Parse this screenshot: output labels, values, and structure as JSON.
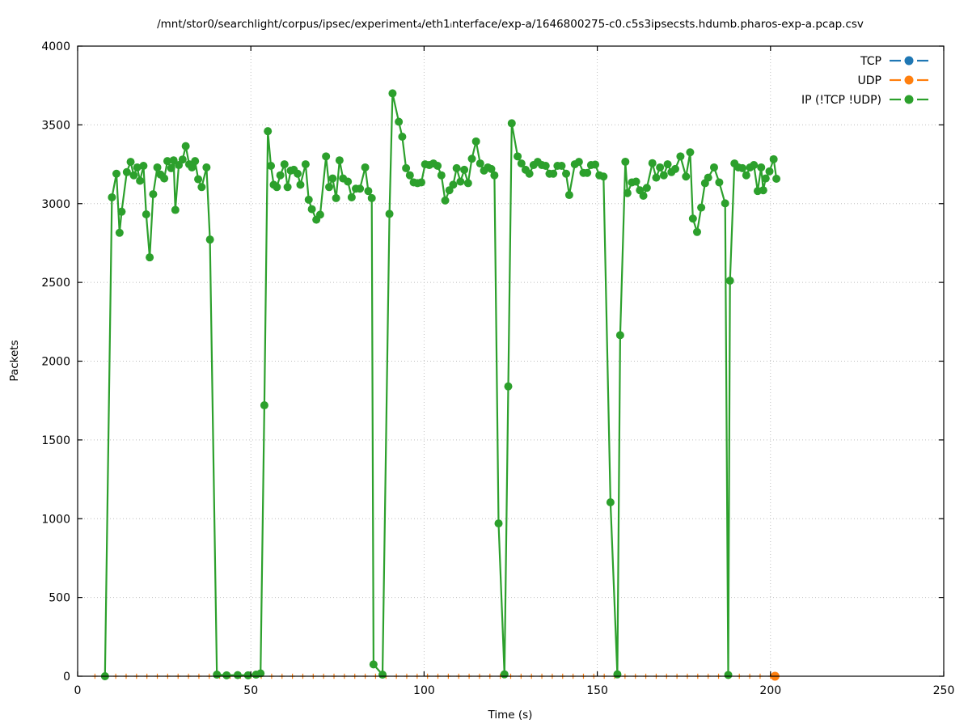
{
  "title": "/mnt/stor0/searchlight/corpus/ipsec/experiment₄/eth1ᵢnterface/exp-a/1646800275-c0.c5s3ipsecsts.hdumb.pharos-exp-a.pcap.csv",
  "axes": {
    "x_label": "Time (s)",
    "y_label": "Packets",
    "x_ticks": [
      0,
      50,
      100,
      150,
      200,
      250
    ],
    "y_ticks": [
      0,
      500,
      1000,
      1500,
      2000,
      2500,
      3000,
      3500,
      4000
    ]
  },
  "legend": {
    "position": "upper right",
    "entries": [
      {
        "label": "TCP",
        "color": "#1f77b4"
      },
      {
        "label": "UDP",
        "color": "#ff7f0e"
      },
      {
        "label": "IP (!TCP  !UDP)",
        "color": "#2ca02c"
      }
    ]
  },
  "chart_data": {
    "type": "line",
    "title": "/mnt/stor0/searchlight/corpus/ipsec/experiment₄/eth1ᵢnterface/exp-a/1646800275-c0.c5s3ipsecsts.hdumb.pharos-exp-a.pcap.csv",
    "xlabel": "Time (s)",
    "ylabel": "Packets",
    "xlim": [
      0,
      250
    ],
    "ylim": [
      0,
      4000
    ],
    "grid": true,
    "grid_style": "dotted",
    "legend_position": "upper right",
    "series": [
      {
        "name": "TCP",
        "color": "#1f77b4",
        "marker": "circle",
        "points": []
      },
      {
        "name": "UDP",
        "color": "#ff7f0e",
        "marker": "plus",
        "final_marker": "circle",
        "points": [
          [
            5,
            0
          ],
          [
            8,
            0
          ],
          [
            11,
            0
          ],
          [
            14,
            0
          ],
          [
            17,
            0
          ],
          [
            20,
            0
          ],
          [
            23,
            0
          ],
          [
            26,
            0
          ],
          [
            29,
            0
          ],
          [
            32,
            0
          ],
          [
            35,
            0
          ],
          [
            38,
            0
          ],
          [
            41,
            0
          ],
          [
            44,
            0
          ],
          [
            47,
            0
          ],
          [
            50,
            0
          ],
          [
            53,
            0
          ],
          [
            56,
            0
          ],
          [
            59,
            0
          ],
          [
            62,
            0
          ],
          [
            65,
            0
          ],
          [
            68,
            0
          ],
          [
            71,
            0
          ],
          [
            74,
            0
          ],
          [
            77,
            0
          ],
          [
            80,
            0
          ],
          [
            83,
            0
          ],
          [
            86,
            0
          ],
          [
            89,
            0
          ],
          [
            92,
            0
          ],
          [
            95,
            0
          ],
          [
            98,
            0
          ],
          [
            101,
            0
          ],
          [
            104,
            0
          ],
          [
            107,
            0
          ],
          [
            110,
            0
          ],
          [
            113,
            0
          ],
          [
            116,
            0
          ],
          [
            119,
            0
          ],
          [
            122,
            0
          ],
          [
            125,
            0
          ],
          [
            128,
            0
          ],
          [
            131,
            0
          ],
          [
            134,
            0
          ],
          [
            137,
            0
          ],
          [
            140,
            0
          ],
          [
            143,
            0
          ],
          [
            146,
            0
          ],
          [
            149,
            0
          ],
          [
            152,
            0
          ],
          [
            155,
            0
          ],
          [
            158,
            0
          ],
          [
            161,
            0
          ],
          [
            164,
            0
          ],
          [
            167,
            0
          ],
          [
            170,
            0
          ],
          [
            173,
            0
          ],
          [
            176,
            0
          ],
          [
            179,
            0
          ],
          [
            182,
            0
          ],
          [
            185,
            0
          ],
          [
            188,
            0
          ],
          [
            191,
            0
          ],
          [
            194,
            0
          ],
          [
            197,
            0
          ],
          [
            200,
            0
          ],
          [
            201.3,
            0
          ]
        ]
      },
      {
        "name": "IP (!TCP  !UDP)",
        "color": "#2ca02c",
        "marker": "circle",
        "points": [
          [
            7.9,
            0
          ],
          [
            9.9,
            3040
          ],
          [
            11.2,
            3190
          ],
          [
            12.1,
            2815
          ],
          [
            12.7,
            2949
          ],
          [
            14.2,
            3200
          ],
          [
            15.3,
            3265
          ],
          [
            16.2,
            3180
          ],
          [
            17.2,
            3230
          ],
          [
            18.0,
            3145
          ],
          [
            19.0,
            3240
          ],
          [
            19.8,
            2932
          ],
          [
            20.8,
            2659
          ],
          [
            21.8,
            3060
          ],
          [
            23.0,
            3230
          ],
          [
            23.9,
            3185
          ],
          [
            25.0,
            3160
          ],
          [
            25.9,
            3270
          ],
          [
            27.0,
            3225
          ],
          [
            27.7,
            3275
          ],
          [
            28.2,
            2960
          ],
          [
            29.2,
            3245
          ],
          [
            30.3,
            3280
          ],
          [
            31.2,
            3365
          ],
          [
            32.2,
            3250
          ],
          [
            33.0,
            3230
          ],
          [
            33.9,
            3270
          ],
          [
            34.8,
            3155
          ],
          [
            35.8,
            3105
          ],
          [
            37.2,
            3230
          ],
          [
            38.2,
            2772
          ],
          [
            40.2,
            10
          ],
          [
            43.0,
            6
          ],
          [
            46.2,
            7
          ],
          [
            49.2,
            6
          ],
          [
            51.5,
            10
          ],
          [
            52.8,
            18
          ],
          [
            53.9,
            1720
          ],
          [
            54.9,
            3460
          ],
          [
            55.8,
            3240
          ],
          [
            56.6,
            3120
          ],
          [
            57.5,
            3105
          ],
          [
            58.5,
            3180
          ],
          [
            59.7,
            3250
          ],
          [
            60.6,
            3105
          ],
          [
            61.5,
            3210
          ],
          [
            62.4,
            3215
          ],
          [
            63.5,
            3190
          ],
          [
            64.3,
            3120
          ],
          [
            65.8,
            3250
          ],
          [
            66.7,
            3025
          ],
          [
            67.6,
            2965
          ],
          [
            68.9,
            2898
          ],
          [
            70.0,
            2930
          ],
          [
            71.7,
            3300
          ],
          [
            72.6,
            3105
          ],
          [
            73.6,
            3160
          ],
          [
            74.6,
            3035
          ],
          [
            75.6,
            3275
          ],
          [
            76.6,
            3160
          ],
          [
            78.0,
            3140
          ],
          [
            79.1,
            3040
          ],
          [
            80.3,
            3095
          ],
          [
            81.5,
            3095
          ],
          [
            83.0,
            3230
          ],
          [
            83.9,
            3080
          ],
          [
            84.9,
            3035
          ],
          [
            85.4,
            75
          ],
          [
            88.0,
            10
          ],
          [
            90.0,
            2935
          ],
          [
            90.9,
            3700
          ],
          [
            92.7,
            3520
          ],
          [
            93.7,
            3425
          ],
          [
            94.8,
            3225
          ],
          [
            95.9,
            3180
          ],
          [
            97.0,
            3135
          ],
          [
            98.1,
            3130
          ],
          [
            99.2,
            3135
          ],
          [
            100.3,
            3250
          ],
          [
            101.5,
            3245
          ],
          [
            102.7,
            3255
          ],
          [
            103.9,
            3240
          ],
          [
            105.0,
            3180
          ],
          [
            106.1,
            3020
          ],
          [
            107.3,
            3085
          ],
          [
            108.4,
            3120
          ],
          [
            109.4,
            3225
          ],
          [
            110.5,
            3140
          ],
          [
            111.6,
            3215
          ],
          [
            112.7,
            3130
          ],
          [
            113.8,
            3285
          ],
          [
            115.0,
            3395
          ],
          [
            116.2,
            3255
          ],
          [
            117.3,
            3210
          ],
          [
            118.4,
            3230
          ],
          [
            119.4,
            3220
          ],
          [
            120.3,
            3180
          ],
          [
            121.5,
            970
          ],
          [
            123.2,
            12
          ],
          [
            124.3,
            1840
          ],
          [
            125.3,
            3510
          ],
          [
            127.0,
            3300
          ],
          [
            128.1,
            3255
          ],
          [
            129.3,
            3215
          ],
          [
            130.4,
            3190
          ],
          [
            131.6,
            3245
          ],
          [
            132.8,
            3265
          ],
          [
            134.0,
            3245
          ],
          [
            135.1,
            3240
          ],
          [
            136.2,
            3190
          ],
          [
            137.3,
            3190
          ],
          [
            138.5,
            3240
          ],
          [
            139.7,
            3240
          ],
          [
            141.0,
            3190
          ],
          [
            141.9,
            3055
          ],
          [
            143.5,
            3250
          ],
          [
            144.7,
            3265
          ],
          [
            146.0,
            3195
          ],
          [
            147.1,
            3195
          ],
          [
            148.2,
            3245
          ],
          [
            149.4,
            3248
          ],
          [
            150.6,
            3180
          ],
          [
            151.8,
            3172
          ],
          [
            153.8,
            1104
          ],
          [
            155.8,
            12
          ],
          [
            156.6,
            2165
          ],
          [
            158.1,
            3266
          ],
          [
            158.7,
            3067
          ],
          [
            160.0,
            3135
          ],
          [
            161.2,
            3140
          ],
          [
            162.3,
            3085
          ],
          [
            163.3,
            3050
          ],
          [
            164.3,
            3100
          ],
          [
            165.9,
            3257
          ],
          [
            167.0,
            3165
          ],
          [
            168.1,
            3230
          ],
          [
            169.2,
            3180
          ],
          [
            170.3,
            3250
          ],
          [
            171.4,
            3200
          ],
          [
            172.5,
            3220
          ],
          [
            174.0,
            3300
          ],
          [
            175.6,
            3172
          ],
          [
            176.8,
            3326
          ],
          [
            177.6,
            2905
          ],
          [
            178.8,
            2820
          ],
          [
            180.0,
            2975
          ],
          [
            181.1,
            3130
          ],
          [
            182.0,
            3165
          ],
          [
            183.7,
            3230
          ],
          [
            185.2,
            3135
          ],
          [
            186.9,
            3002
          ],
          [
            187.8,
            8
          ],
          [
            188.3,
            2511
          ],
          [
            189.6,
            3255
          ],
          [
            190.7,
            3230
          ],
          [
            191.9,
            3225
          ],
          [
            193.0,
            3180
          ],
          [
            194.1,
            3230
          ],
          [
            195.2,
            3245
          ],
          [
            196.3,
            3080
          ],
          [
            197.3,
            3230
          ],
          [
            197.9,
            3085
          ],
          [
            198.6,
            3160
          ],
          [
            199.7,
            3205
          ],
          [
            200.9,
            3282
          ],
          [
            201.7,
            3158
          ]
        ]
      }
    ]
  }
}
